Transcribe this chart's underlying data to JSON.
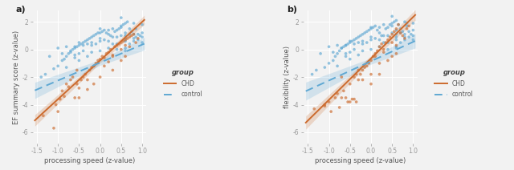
{
  "panel_a": {
    "title": "a)",
    "xlabel": "processing speed (z-value)",
    "ylabel": "EF summary score (z-value)",
    "xlim": [
      -1.6,
      1.1
    ],
    "ylim": [
      -6.8,
      2.8
    ],
    "xticks": [
      -1.5,
      -1.0,
      -0.5,
      0.0,
      0.5,
      1.0
    ],
    "yticks": [
      -6,
      -4,
      -2,
      0,
      2
    ],
    "chd_line": {
      "slope": 2.8,
      "intercept": -0.8
    },
    "control_line": {
      "slope": 1.3,
      "intercept": -0.95
    },
    "chd_ci_slope": 0.15,
    "chd_ci_base": 0.18,
    "ctrl_ci_slope": 0.25,
    "ctrl_ci_base": 0.2,
    "chd_scatter": [
      [
        -1.35,
        -4.8
      ],
      [
        -1.1,
        -5.7
      ],
      [
        -1.0,
        -4.5
      ],
      [
        -0.95,
        -3.6
      ],
      [
        -0.85,
        -3.4
      ],
      [
        -0.8,
        -2.5
      ],
      [
        -0.75,
        -2.7
      ],
      [
        -0.7,
        -2.2
      ],
      [
        -0.65,
        -2.0
      ],
      [
        -0.6,
        -3.5
      ],
      [
        -0.55,
        -2.5
      ],
      [
        -0.5,
        -2.8
      ],
      [
        -0.45,
        -2.2
      ],
      [
        -0.4,
        -2.0
      ],
      [
        -0.35,
        -1.8
      ],
      [
        -0.3,
        -2.2
      ],
      [
        -0.25,
        -1.5
      ],
      [
        -0.2,
        -1.3
      ],
      [
        -0.15,
        -1.2
      ],
      [
        -0.1,
        -1.0
      ],
      [
        -0.05,
        -0.8
      ],
      [
        0.0,
        -0.7
      ],
      [
        0.05,
        -0.5
      ],
      [
        0.1,
        -0.6
      ],
      [
        0.15,
        -0.3
      ],
      [
        0.2,
        -0.2
      ],
      [
        0.25,
        0.0
      ],
      [
        0.3,
        -0.4
      ],
      [
        0.35,
        0.2
      ],
      [
        0.4,
        0.3
      ],
      [
        0.45,
        0.4
      ],
      [
        0.5,
        0.5
      ],
      [
        0.55,
        0.6
      ],
      [
        0.6,
        0.7
      ],
      [
        0.65,
        0.8
      ],
      [
        0.7,
        0.9
      ],
      [
        0.75,
        1.0
      ],
      [
        0.8,
        1.1
      ],
      [
        0.85,
        0.5
      ],
      [
        0.9,
        0.8
      ],
      [
        -0.55,
        -1.5
      ],
      [
        -0.3,
        -2.9
      ],
      [
        0.1,
        -1.2
      ],
      [
        0.2,
        -0.9
      ],
      [
        -1.05,
        -4.0
      ],
      [
        -0.9,
        -3.0
      ],
      [
        -0.5,
        -3.5
      ],
      [
        0.3,
        -0.5
      ],
      [
        0.5,
        0.0
      ],
      [
        0.6,
        0.3
      ],
      [
        -0.15,
        -2.5
      ],
      [
        0.0,
        -2.0
      ],
      [
        0.3,
        -1.5
      ],
      [
        0.5,
        -0.8
      ],
      [
        0.6,
        -0.5
      ],
      [
        0.7,
        0.2
      ]
    ],
    "control_scatter": [
      [
        -1.4,
        -2.0
      ],
      [
        -1.3,
        -1.8
      ],
      [
        -1.1,
        -1.4
      ],
      [
        -1.0,
        -1.2
      ],
      [
        -0.9,
        -0.8
      ],
      [
        -0.85,
        -0.7
      ],
      [
        -0.8,
        -0.5
      ],
      [
        -0.75,
        -0.3
      ],
      [
        -0.7,
        -0.2
      ],
      [
        -0.65,
        0.0
      ],
      [
        -0.6,
        0.1
      ],
      [
        -0.55,
        0.2
      ],
      [
        -0.5,
        0.3
      ],
      [
        -0.45,
        0.4
      ],
      [
        -0.4,
        0.5
      ],
      [
        -0.35,
        0.6
      ],
      [
        -0.3,
        0.7
      ],
      [
        -0.25,
        0.8
      ],
      [
        -0.2,
        0.9
      ],
      [
        -0.15,
        1.0
      ],
      [
        -0.1,
        1.1
      ],
      [
        -0.05,
        1.2
      ],
      [
        0.0,
        1.2
      ],
      [
        0.05,
        1.3
      ],
      [
        0.1,
        1.4
      ],
      [
        0.15,
        1.2
      ],
      [
        0.2,
        1.1
      ],
      [
        0.25,
        1.0
      ],
      [
        0.3,
        1.5
      ],
      [
        0.35,
        1.3
      ],
      [
        0.4,
        1.4
      ],
      [
        0.45,
        1.5
      ],
      [
        0.5,
        1.7
      ],
      [
        0.55,
        1.8
      ],
      [
        0.6,
        1.9
      ],
      [
        0.65,
        2.0
      ],
      [
        0.7,
        1.5
      ],
      [
        0.75,
        1.3
      ],
      [
        0.8,
        1.1
      ],
      [
        0.85,
        0.9
      ],
      [
        0.9,
        1.1
      ],
      [
        0.95,
        1.0
      ],
      [
        1.0,
        1.2
      ],
      [
        1.0,
        0.5
      ],
      [
        -0.9,
        -0.3
      ],
      [
        -0.6,
        0.2
      ],
      [
        -0.3,
        0.4
      ],
      [
        0.1,
        0.7
      ],
      [
        0.4,
        0.4
      ],
      [
        0.6,
        0.8
      ],
      [
        0.8,
        1.9
      ],
      [
        0.5,
        2.3
      ],
      [
        -0.5,
        -0.3
      ],
      [
        -0.2,
        0.5
      ],
      [
        0.3,
        0.9
      ],
      [
        0.7,
        1.1
      ],
      [
        -0.7,
        -0.1
      ],
      [
        -0.4,
        0.3
      ],
      [
        0.0,
        0.6
      ],
      [
        0.6,
        1.2
      ],
      [
        0.2,
        1.4
      ],
      [
        0.5,
        1.0
      ],
      [
        0.9,
        0.7
      ],
      [
        -0.1,
        0.4
      ],
      [
        0.4,
        0.0
      ],
      [
        0.6,
        0.1
      ],
      [
        0.8,
        0.6
      ],
      [
        -0.6,
        -0.6
      ],
      [
        -0.2,
        -0.2
      ],
      [
        0.2,
        0.1
      ],
      [
        0.6,
        -0.1
      ],
      [
        0.85,
        1.5
      ],
      [
        0.7,
        0.4
      ],
      [
        -0.8,
        -1.3
      ],
      [
        -0.5,
        -0.8
      ],
      [
        -0.3,
        -0.5
      ],
      [
        0.0,
        -0.1
      ],
      [
        0.3,
        0.4
      ],
      [
        0.6,
        0.6
      ],
      [
        -1.2,
        -0.5
      ],
      [
        -1.0,
        0.1
      ],
      [
        -0.8,
        0.2
      ],
      [
        -0.6,
        -0.4
      ],
      [
        -0.4,
        -0.1
      ],
      [
        -0.2,
        0.3
      ],
      [
        0.0,
        0.8
      ],
      [
        0.2,
        0.6
      ],
      [
        0.4,
        0.9
      ],
      [
        0.6,
        1.0
      ],
      [
        0.8,
        0.8
      ],
      [
        1.0,
        0.9
      ],
      [
        -0.5,
        0.5
      ],
      [
        0.0,
        1.5
      ],
      [
        0.5,
        1.6
      ],
      [
        1.0,
        1.8
      ]
    ]
  },
  "panel_b": {
    "title": "b)",
    "xlabel": "processing speed (z-value)",
    "ylabel": "flexibility (z-value)",
    "xlim": [
      -1.6,
      1.1
    ],
    "ylim": [
      -6.8,
      2.8
    ],
    "xticks": [
      -1.5,
      -1.0,
      -0.5,
      0.0,
      0.5,
      1.0
    ],
    "yticks": [
      -6,
      -4,
      -2,
      0,
      2
    ],
    "chd_line": {
      "slope": 3.0,
      "intercept": -0.65
    },
    "control_line": {
      "slope": 1.4,
      "intercept": -0.85
    },
    "chd_ci_slope": 0.18,
    "chd_ci_base": 0.2,
    "ctrl_ci_slope": 0.28,
    "ctrl_ci_base": 0.22,
    "chd_scatter": [
      [
        -1.35,
        -4.3
      ],
      [
        -1.1,
        -4.0
      ],
      [
        -1.0,
        -3.8
      ],
      [
        -0.95,
        -4.5
      ],
      [
        -0.85,
        -3.5
      ],
      [
        -0.8,
        -3.2
      ],
      [
        -0.75,
        -4.2
      ],
      [
        -0.7,
        -3.5
      ],
      [
        -0.65,
        -3.0
      ],
      [
        -0.6,
        -3.5
      ],
      [
        -0.55,
        -3.8
      ],
      [
        -0.5,
        -3.8
      ],
      [
        -0.45,
        -3.6
      ],
      [
        -0.4,
        -2.0
      ],
      [
        -0.35,
        -1.8
      ],
      [
        -0.3,
        -2.2
      ],
      [
        -0.25,
        -1.8
      ],
      [
        -0.2,
        -1.5
      ],
      [
        -0.15,
        -1.3
      ],
      [
        -0.1,
        -1.2
      ],
      [
        -0.05,
        -1.0
      ],
      [
        0.0,
        -0.8
      ],
      [
        0.05,
        -0.5
      ],
      [
        0.1,
        -0.3
      ],
      [
        0.15,
        -0.1
      ],
      [
        0.2,
        0.2
      ],
      [
        0.25,
        0.4
      ],
      [
        0.3,
        0.0
      ],
      [
        0.35,
        0.5
      ],
      [
        0.4,
        0.7
      ],
      [
        0.45,
        0.9
      ],
      [
        0.5,
        1.1
      ],
      [
        0.55,
        1.3
      ],
      [
        0.6,
        1.5
      ],
      [
        0.65,
        1.8
      ],
      [
        0.7,
        1.2
      ],
      [
        0.75,
        1.0
      ],
      [
        0.8,
        0.8
      ],
      [
        0.85,
        1.5
      ],
      [
        0.9,
        1.7
      ],
      [
        -0.5,
        -2.5
      ],
      [
        -0.4,
        -3.6
      ],
      [
        -0.35,
        -3.8
      ],
      [
        -0.3,
        -1.5
      ],
      [
        0.1,
        -0.5
      ],
      [
        0.3,
        -0.2
      ],
      [
        -1.1,
        -4.1
      ],
      [
        -0.7,
        -2.0
      ],
      [
        0.0,
        -1.8
      ],
      [
        0.2,
        -1.0
      ],
      [
        0.5,
        0.5
      ],
      [
        0.6,
        0.3
      ],
      [
        -0.2,
        -2.2
      ],
      [
        0.0,
        -2.5
      ],
      [
        0.2,
        -1.8
      ],
      [
        0.4,
        -0.8
      ],
      [
        0.5,
        -0.5
      ],
      [
        0.6,
        -0.3
      ]
    ],
    "control_scatter": [
      [
        -1.4,
        -1.8
      ],
      [
        -1.3,
        -1.5
      ],
      [
        -1.1,
        -1.3
      ],
      [
        -1.0,
        -1.0
      ],
      [
        -0.9,
        -0.8
      ],
      [
        -0.85,
        -0.5
      ],
      [
        -0.8,
        -0.3
      ],
      [
        -0.75,
        -0.1
      ],
      [
        -0.7,
        0.1
      ],
      [
        -0.65,
        0.2
      ],
      [
        -0.6,
        0.3
      ],
      [
        -0.55,
        0.4
      ],
      [
        -0.5,
        0.5
      ],
      [
        -0.45,
        0.6
      ],
      [
        -0.4,
        0.7
      ],
      [
        -0.35,
        0.8
      ],
      [
        -0.3,
        0.9
      ],
      [
        -0.25,
        1.0
      ],
      [
        -0.2,
        1.1
      ],
      [
        -0.15,
        1.2
      ],
      [
        -0.1,
        1.3
      ],
      [
        -0.05,
        1.4
      ],
      [
        0.0,
        1.5
      ],
      [
        0.05,
        1.6
      ],
      [
        0.1,
        1.7
      ],
      [
        0.15,
        1.4
      ],
      [
        0.2,
        1.2
      ],
      [
        0.25,
        1.0
      ],
      [
        0.3,
        1.8
      ],
      [
        0.35,
        1.5
      ],
      [
        0.4,
        1.6
      ],
      [
        0.45,
        1.8
      ],
      [
        0.5,
        1.9
      ],
      [
        0.55,
        2.0
      ],
      [
        0.6,
        2.1
      ],
      [
        0.65,
        1.8
      ],
      [
        0.7,
        1.5
      ],
      [
        0.75,
        1.3
      ],
      [
        0.8,
        1.1
      ],
      [
        0.85,
        1.9
      ],
      [
        0.9,
        1.3
      ],
      [
        0.95,
        1.1
      ],
      [
        1.0,
        1.4
      ],
      [
        1.0,
        0.7
      ],
      [
        -0.9,
        -0.2
      ],
      [
        -0.6,
        0.3
      ],
      [
        -0.3,
        0.5
      ],
      [
        0.1,
        0.8
      ],
      [
        0.4,
        0.5
      ],
      [
        0.6,
        0.9
      ],
      [
        0.8,
        2.0
      ],
      [
        0.5,
        2.4
      ],
      [
        -0.5,
        -0.2
      ],
      [
        -0.2,
        0.6
      ],
      [
        0.3,
        1.0
      ],
      [
        0.7,
        1.2
      ],
      [
        -0.7,
        0.1
      ],
      [
        -0.4,
        0.4
      ],
      [
        0.0,
        0.7
      ],
      [
        0.6,
        1.4
      ],
      [
        0.2,
        1.6
      ],
      [
        0.5,
        1.2
      ],
      [
        0.9,
        0.9
      ],
      [
        -0.1,
        0.5
      ],
      [
        0.4,
        0.0
      ],
      [
        0.6,
        0.2
      ],
      [
        0.8,
        0.7
      ],
      [
        -0.6,
        -0.5
      ],
      [
        -0.2,
        -0.1
      ],
      [
        0.2,
        0.2
      ],
      [
        0.6,
        0.1
      ],
      [
        0.85,
        1.7
      ],
      [
        0.7,
        0.5
      ],
      [
        -0.8,
        -1.2
      ],
      [
        -0.5,
        -0.7
      ],
      [
        -0.3,
        -0.4
      ],
      [
        0.0,
        0.0
      ],
      [
        0.3,
        0.5
      ],
      [
        0.6,
        0.7
      ],
      [
        -1.2,
        -0.3
      ],
      [
        -1.0,
        0.2
      ],
      [
        -0.8,
        0.3
      ],
      [
        -0.6,
        -0.3
      ],
      [
        -0.4,
        0.0
      ],
      [
        -0.2,
        0.4
      ],
      [
        0.0,
        0.9
      ],
      [
        0.2,
        0.7
      ],
      [
        0.4,
        1.0
      ],
      [
        0.6,
        1.1
      ],
      [
        0.8,
        0.9
      ],
      [
        1.0,
        1.0
      ],
      [
        -0.5,
        0.6
      ],
      [
        0.0,
        1.6
      ],
      [
        0.5,
        1.7
      ],
      [
        1.0,
        1.9
      ]
    ]
  },
  "chd_color": "#CC6B2E",
  "control_color": "#5FA8D3",
  "scatter_alpha": 0.65,
  "ci_alpha": 0.22,
  "bg_color": "#F2F2F2",
  "grid_color": "#FFFFFF",
  "legend_title": "group",
  "legend_chd": "CHD",
  "legend_control": "control"
}
